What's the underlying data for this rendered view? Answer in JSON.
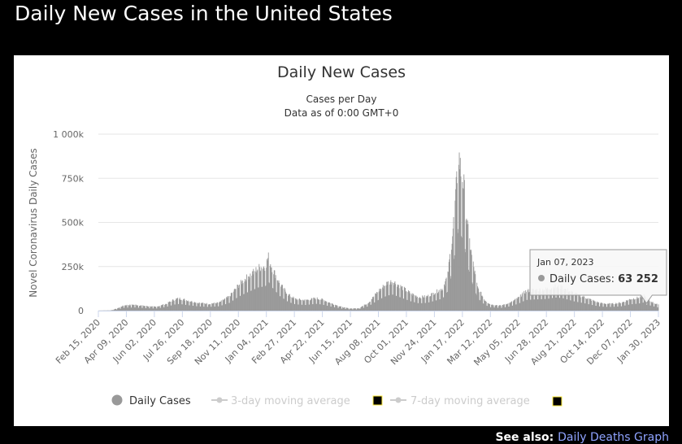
{
  "page": {
    "title": "Daily New Cases in the United States",
    "see_also_label": "See also:",
    "see_also_link": "Daily Deaths Graph"
  },
  "chart_data": {
    "type": "bar",
    "title": "Daily New Cases",
    "subtitle_lines": [
      "Cases per Day",
      "Data as of 0:00 GMT+0"
    ],
    "ylabel": "Novel Coronavirus Daily Cases",
    "xlabel": "",
    "ylim": [
      0,
      1000000
    ],
    "yticks": [
      {
        "value": 0,
        "label": "0"
      },
      {
        "value": 250000,
        "label": "250k"
      },
      {
        "value": 500000,
        "label": "500k"
      },
      {
        "value": 750000,
        "label": "750k"
      },
      {
        "value": 1000000,
        "label": "1 000k"
      }
    ],
    "xlim": [
      "2020-02-15",
      "2023-01-30"
    ],
    "xticks": [
      "Feb 15, 2020",
      "Apr 09, 2020",
      "Jun 02, 2020",
      "Jul 26, 2020",
      "Sep 18, 2020",
      "Nov 11, 2020",
      "Jan 04, 2021",
      "Feb 27, 2021",
      "Apr 22, 2021",
      "Jun 15, 2021",
      "Aug 08, 2021",
      "Oct 01, 2021",
      "Nov 24, 2021",
      "Jan 17, 2022",
      "Mar 12, 2022",
      "May 05, 2022",
      "Jun 28, 2022",
      "Aug 21, 2022",
      "Oct 14, 2022",
      "Dec 07, 2022",
      "Jan 30, 2023"
    ],
    "grid": true,
    "series": [
      {
        "name": "Daily Cases",
        "color": "#999999",
        "points": [
          [
            "2020-02-15",
            0
          ],
          [
            "2020-03-10",
            1000
          ],
          [
            "2020-03-25",
            15000
          ],
          [
            "2020-04-05",
            30000
          ],
          [
            "2020-04-24",
            33000
          ],
          [
            "2020-05-15",
            26000
          ],
          [
            "2020-06-05",
            21000
          ],
          [
            "2020-06-25",
            38000
          ],
          [
            "2020-07-10",
            62000
          ],
          [
            "2020-07-20",
            69000
          ],
          [
            "2020-08-05",
            57000
          ],
          [
            "2020-08-25",
            44000
          ],
          [
            "2020-09-15",
            38000
          ],
          [
            "2020-10-05",
            45000
          ],
          [
            "2020-10-25",
            80000
          ],
          [
            "2020-11-11",
            142000
          ],
          [
            "2020-11-25",
            180000
          ],
          [
            "2020-12-10",
            215000
          ],
          [
            "2020-12-20",
            240000
          ],
          [
            "2021-01-02",
            250000
          ],
          [
            "2021-01-08",
            300000
          ],
          [
            "2021-01-15",
            240000
          ],
          [
            "2021-01-30",
            150000
          ],
          [
            "2021-02-15",
            90000
          ],
          [
            "2021-03-01",
            65000
          ],
          [
            "2021-03-20",
            58000
          ],
          [
            "2021-04-10",
            70000
          ],
          [
            "2021-04-22",
            62000
          ],
          [
            "2021-05-10",
            40000
          ],
          [
            "2021-06-01",
            18000
          ],
          [
            "2021-06-15",
            12000
          ],
          [
            "2021-07-01",
            13000
          ],
          [
            "2021-07-20",
            45000
          ],
          [
            "2021-08-08",
            110000
          ],
          [
            "2021-08-25",
            155000
          ],
          [
            "2021-09-05",
            165000
          ],
          [
            "2021-09-20",
            135000
          ],
          [
            "2021-10-10",
            95000
          ],
          [
            "2021-10-25",
            75000
          ],
          [
            "2021-11-10",
            80000
          ],
          [
            "2021-11-24",
            100000
          ],
          [
            "2021-12-10",
            125000
          ],
          [
            "2021-12-20",
            200000
          ],
          [
            "2021-12-30",
            460000
          ],
          [
            "2022-01-05",
            680000
          ],
          [
            "2022-01-10",
            880000
          ],
          [
            "2022-01-14",
            780000
          ],
          [
            "2022-01-20",
            700000
          ],
          [
            "2022-01-28",
            440000
          ],
          [
            "2022-02-05",
            290000
          ],
          [
            "2022-02-15",
            130000
          ],
          [
            "2022-03-01",
            60000
          ],
          [
            "2022-03-12",
            35000
          ],
          [
            "2022-04-01",
            28000
          ],
          [
            "2022-04-20",
            45000
          ],
          [
            "2022-05-05",
            72000
          ],
          [
            "2022-05-20",
            110000
          ],
          [
            "2022-06-05",
            115000
          ],
          [
            "2022-06-28",
            120000
          ],
          [
            "2022-07-15",
            135000
          ],
          [
            "2022-07-28",
            130000
          ],
          [
            "2022-08-21",
            95000
          ],
          [
            "2022-09-10",
            75000
          ],
          [
            "2022-10-01",
            50000
          ],
          [
            "2022-10-14",
            40000
          ],
          [
            "2022-11-01",
            38000
          ],
          [
            "2022-11-20",
            45000
          ],
          [
            "2022-12-07",
            65000
          ],
          [
            "2022-12-22",
            72000
          ],
          [
            "2023-01-03",
            85000
          ],
          [
            "2023-01-07",
            63252
          ],
          [
            "2023-01-20",
            45000
          ],
          [
            "2023-01-30",
            32000
          ]
        ]
      },
      {
        "name": "3-day moving average",
        "color": "#cccccc",
        "hidden": true
      },
      {
        "name": "7-day moving average",
        "color": "#cccccc",
        "hidden": true
      }
    ],
    "tooltip": {
      "date": "Jan 07, 2023",
      "label": "Daily Cases:",
      "value": "63 252"
    },
    "legend": {
      "placement": "bottom"
    }
  }
}
